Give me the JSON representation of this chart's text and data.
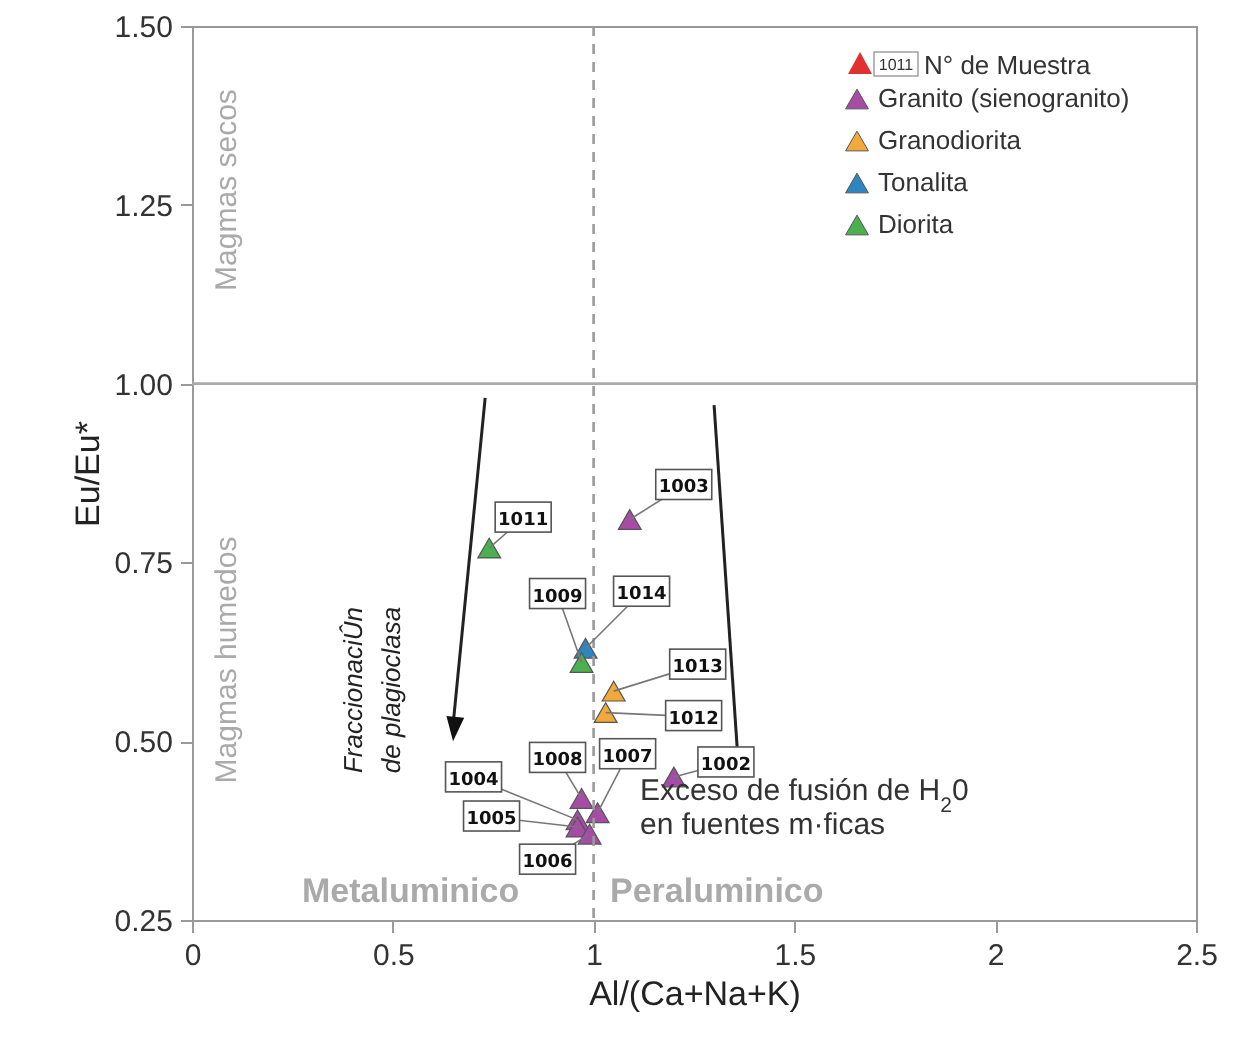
{
  "chart_data": {
    "type": "scatter",
    "xlabel": "Al/(Ca+Na+K)",
    "ylabel": "Eu/Eu*",
    "xlim": [
      0,
      2.5
    ],
    "xticks": [
      0,
      0.5,
      1,
      1.5,
      2,
      2.5
    ],
    "ylim": [
      0.25,
      1.5
    ],
    "yticks": [
      {
        "value": 0.25,
        "label": "0.25"
      },
      {
        "value": 0.5,
        "label": "0.50"
      },
      {
        "value": 0.75,
        "label": "0.75"
      },
      {
        "value": 1,
        "label": "1.00"
      },
      {
        "value": 1.25,
        "label": "1.25"
      },
      {
        "value": 1.5,
        "label": "1.50"
      }
    ],
    "grid": false,
    "legend": "top right",
    "marker": "triangle",
    "series": [
      {
        "name": "Granito (sienogranito)",
        "color": "#a64ca6",
        "x": [
          1.09,
          1.2,
          0.97,
          1.01,
          0.96,
          0.96,
          0.99
        ],
        "values": [
          0.81,
          0.45,
          0.42,
          0.4,
          0.39,
          0.38,
          0.37
        ]
      },
      {
        "name": "Granodiorita",
        "color": "#f2a93b",
        "x": [
          1.05,
          1.03
        ],
        "values": [
          0.57,
          0.54
        ]
      },
      {
        "name": "Tonalita",
        "color": "#2e86c1",
        "x": [
          0.98
        ],
        "values": [
          0.63
        ]
      },
      {
        "name": "Diorita",
        "color": "#4caf50",
        "x": [
          0.74,
          0.97
        ],
        "values": [
          0.77,
          0.61
        ]
      }
    ],
    "ref_lines": [
      {
        "axis": "y",
        "value": 1,
        "color": "#aaaaaa",
        "line_style": "solid"
      },
      {
        "axis": "x",
        "value": 1,
        "color": "#999999",
        "line_style": "dashed"
      }
    ],
    "annotations": [
      "Magmas secos",
      "Magmas humedos",
      "FraccionaciÛn\nde plagioclasa",
      "Exceso de fusión de H$_{2}$0\nen fuentes m·ficas",
      "Metaluminico",
      "Peraluminico",
      "N° de Muestra",
      "1011",
      {
        "text": "1011",
        "x": 0.74,
        "y": 0.77
      },
      {
        "text": "1003",
        "x": 1.09,
        "y": 0.81
      },
      {
        "text": "1009",
        "x": 0.97,
        "y": 0.61
      },
      {
        "text": "1014",
        "x": 0.98,
        "y": 0.63
      },
      {
        "text": "1013",
        "x": 1.05,
        "y": 0.57
      },
      {
        "text": "1012",
        "x": 1.03,
        "y": 0.54
      },
      {
        "text": "1002",
        "x": 1.2,
        "y": 0.45
      },
      {
        "text": "1008",
        "x": 0.97,
        "y": 0.42
      },
      {
        "text": "1007",
        "x": 1.01,
        "y": 0.4
      },
      {
        "text": "1004",
        "x": 0.96,
        "y": 0.39
      },
      {
        "text": "1005",
        "x": 0.96,
        "y": 0.38
      },
      {
        "text": "1006",
        "x": 0.99,
        "y": 0.37
      }
    ]
  }
}
